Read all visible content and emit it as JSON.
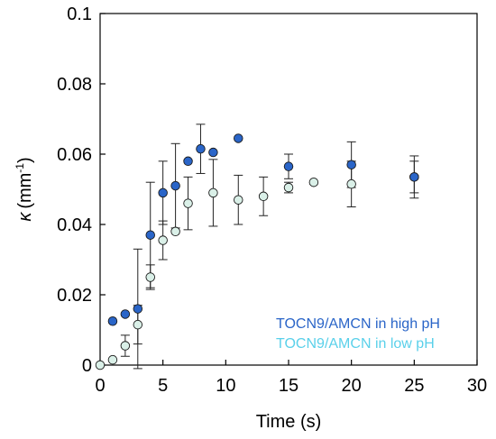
{
  "chart_data": {
    "type": "scatter",
    "xlabel": "Time (s)",
    "ylabel_symbol": "κ",
    "ylabel_unit": "(mm",
    "ylabel_exponent": "-1",
    "ylabel_close": ")",
    "xlim": [
      0,
      30
    ],
    "ylim": [
      0,
      0.1
    ],
    "xticks": [
      0,
      5,
      10,
      15,
      20,
      25,
      30
    ],
    "yticks": [
      0,
      0.02,
      0.04,
      0.06,
      0.08,
      0.1
    ],
    "xtick_labels": [
      "0",
      "5",
      "10",
      "15",
      "20",
      "25",
      "30"
    ],
    "ytick_labels": [
      "0",
      "0.02",
      "0.04",
      "0.06",
      "0.08",
      "0.1"
    ],
    "grid": false,
    "legend_position": "bottom-right",
    "series": [
      {
        "name": "TOCN9/AMCN in  high pH",
        "color": "#2a65c8",
        "label_color": "#2a65c8",
        "x": [
          1,
          2,
          3,
          4,
          5,
          6,
          7,
          8,
          9,
          11,
          15,
          20,
          25
        ],
        "y": [
          0.0125,
          0.0145,
          0.016,
          0.037,
          0.049,
          0.051,
          0.058,
          0.0615,
          0.0605,
          0.0645,
          0.0565,
          0.057,
          0.0535
        ],
        "err": [
          0,
          0,
          0.017,
          0.015,
          0.009,
          0.012,
          0,
          0.007,
          0,
          0,
          0.0035,
          0.0065,
          0.0045
        ]
      },
      {
        "name": "TOCN9/AMCN in low pH",
        "color": "#daf0e8",
        "label_color": "#5ad0ea",
        "x": [
          0,
          1,
          2,
          3,
          4,
          5,
          6,
          7,
          9,
          11,
          13,
          15,
          17,
          20,
          25
        ],
        "y": [
          0,
          0.0015,
          0.0055,
          0.0115,
          0.025,
          0.0355,
          0.038,
          0.046,
          0.049,
          0.047,
          0.048,
          0.0505,
          0.052,
          0.0515,
          0.0535
        ],
        "err": [
          0,
          0,
          0.003,
          0.0055,
          0.0035,
          0.0055,
          0,
          0.0075,
          0.0095,
          0.007,
          0.0055,
          0.0015,
          0,
          0.0065,
          0.006
        ]
      }
    ]
  }
}
